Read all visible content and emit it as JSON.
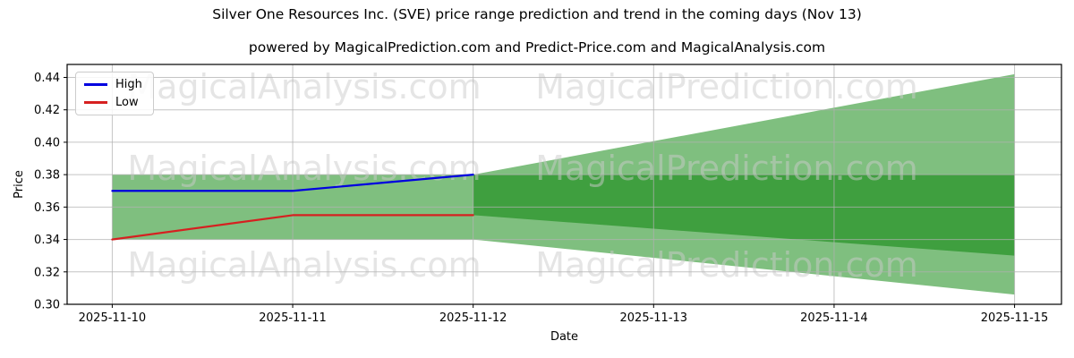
{
  "figure": {
    "title": "Silver One Resources Inc. (SVE) price range prediction and trend in the coming days (Nov 13)",
    "subtitle": "powered by MagicalPrediction.com and Predict-Price.com and MagicalAnalysis.com"
  },
  "legend": {
    "items": [
      {
        "label": "High",
        "color": "#0000e0"
      },
      {
        "label": "Low",
        "color": "#d62020"
      }
    ]
  },
  "watermarks": {
    "left_text": "MagicalAnalysis.com",
    "right_text": "MagicalPrediction.com",
    "color": "#cccccc",
    "opacity": 0.5
  },
  "chart_data": {
    "type": "line",
    "title": "Silver One Resources Inc. (SVE) price range prediction and trend in the coming days (Nov 13)",
    "subtitle": "powered by MagicalPrediction.com and Predict-Price.com and MagicalAnalysis.com",
    "xlabel": "Date",
    "ylabel": "Price",
    "x_tick_labels": [
      "2025-11-10",
      "2025-11-11",
      "2025-11-12",
      "2025-11-13",
      "2025-11-14",
      "2025-11-15"
    ],
    "y_tick_values": [
      0.3,
      0.32,
      0.34,
      0.36,
      0.38,
      0.4,
      0.42,
      0.44
    ],
    "ylim": [
      0.3,
      0.448
    ],
    "xlim_days": [
      -0.25,
      5.26
    ],
    "grid": true,
    "grid_color": "#b0b0b0",
    "legend_position": "upper left",
    "series": [
      {
        "name": "High",
        "color": "#0000e0",
        "x_days": [
          0,
          1,
          2
        ],
        "values": [
          0.37,
          0.37,
          0.38
        ]
      },
      {
        "name": "Low",
        "color": "#d62020",
        "x_days": [
          0,
          1,
          2
        ],
        "values": [
          0.34,
          0.355,
          0.355
        ]
      }
    ],
    "bands": [
      {
        "name": "historical-range",
        "color": "#7fbf7f",
        "x_days": [
          0,
          2
        ],
        "top": [
          0.38,
          0.38
        ],
        "bottom": [
          0.34,
          0.34
        ]
      },
      {
        "name": "forecast-range-outer",
        "color": "#7fbf7f",
        "x_days": [
          2,
          5
        ],
        "top": [
          0.38,
          0.442
        ],
        "bottom": [
          0.34,
          0.306
        ]
      },
      {
        "name": "forecast-range-inner",
        "color": "#3f9f3f",
        "x_days": [
          2,
          5
        ],
        "top": [
          0.38,
          0.38
        ],
        "bottom": [
          0.355,
          0.33
        ]
      }
    ]
  }
}
